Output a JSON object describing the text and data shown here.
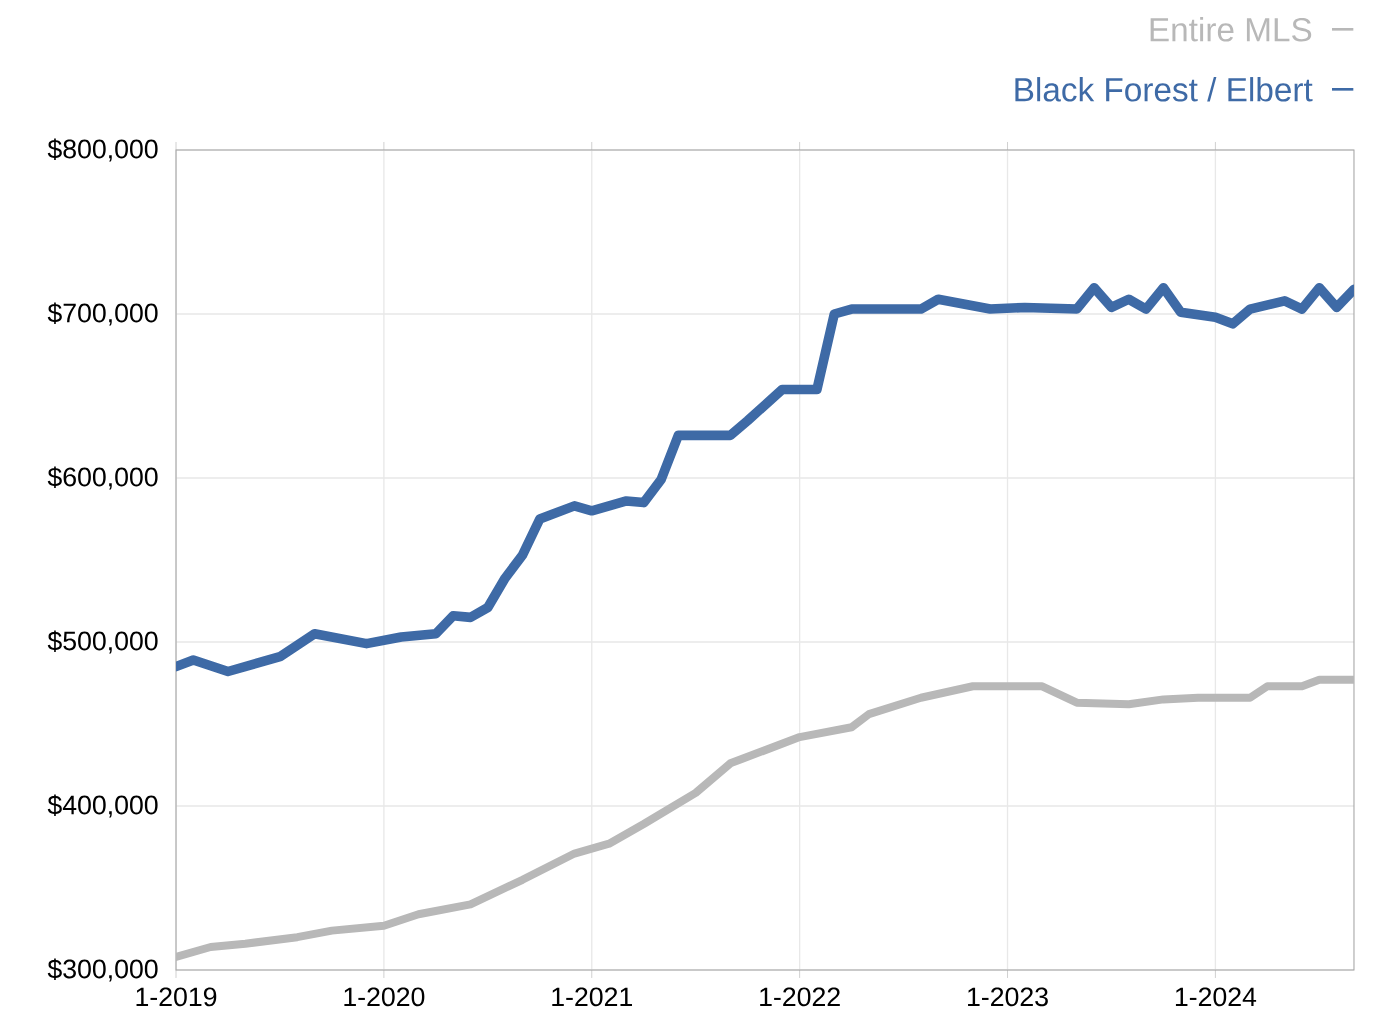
{
  "chart_data": {
    "type": "line",
    "xlim": [
      "2019-01",
      "2024-09"
    ],
    "xticks": [
      {
        "value": "2019-01",
        "label": "1-2019"
      },
      {
        "value": "2020-01",
        "label": "1-2020"
      },
      {
        "value": "2021-01",
        "label": "1-2021"
      },
      {
        "value": "2022-01",
        "label": "1-2022"
      },
      {
        "value": "2023-01",
        "label": "1-2023"
      },
      {
        "value": "2024-01",
        "label": "1-2024"
      }
    ],
    "ylim": [
      300000,
      800000
    ],
    "yticks": [
      {
        "value": 300000,
        "label": "$300,000"
      },
      {
        "value": 400000,
        "label": "$400,000"
      },
      {
        "value": 500000,
        "label": "$500,000"
      },
      {
        "value": 600000,
        "label": "$600,000"
      },
      {
        "value": 700000,
        "label": "$700,000"
      },
      {
        "value": 800000,
        "label": "$800,000"
      }
    ],
    "grid": true,
    "legend": "top right",
    "marker": "none",
    "line_style": "solid",
    "series": [
      {
        "name": "Entire MLS",
        "color": "#b8b8b8",
        "x": [
          "2019-01",
          "2019-03",
          "2019-05",
          "2019-08",
          "2019-10",
          "2020-01",
          "2020-03",
          "2020-06",
          "2020-09",
          "2020-12",
          "2021-02",
          "2021-04",
          "2021-07",
          "2021-09",
          "2022-01",
          "2022-04",
          "2022-05",
          "2022-08",
          "2022-11",
          "2023-03",
          "2023-05",
          "2023-08",
          "2023-10",
          "2023-12",
          "2024-03",
          "2024-04",
          "2024-06",
          "2024-07",
          "2024-09"
        ],
        "values": [
          308000,
          314000,
          316000,
          320000,
          324000,
          327000,
          334000,
          340000,
          355000,
          371000,
          377000,
          389000,
          408000,
          426000,
          442000,
          448000,
          456000,
          466000,
          473000,
          473000,
          463000,
          462000,
          465000,
          466000,
          466000,
          473000,
          473000,
          477000,
          477000
        ]
      },
      {
        "name": "Black Forest / Elbert",
        "color": "#3e6aa6",
        "x": [
          "2019-01",
          "2019-02",
          "2019-04",
          "2019-07",
          "2019-09",
          "2019-12",
          "2020-02",
          "2020-04",
          "2020-05",
          "2020-06",
          "2020-07",
          "2020-08",
          "2020-09",
          "2020-10",
          "2020-12",
          "2021-01",
          "2021-03",
          "2021-04",
          "2021-05",
          "2021-06",
          "2021-09",
          "2021-10",
          "2021-12",
          "2022-02",
          "2022-03",
          "2022-04",
          "2022-08",
          "2022-09",
          "2022-12",
          "2023-02",
          "2023-05",
          "2023-06",
          "2023-07",
          "2023-08",
          "2023-09",
          "2023-10",
          "2023-11",
          "2024-01",
          "2024-02",
          "2024-03",
          "2024-05",
          "2024-06",
          "2024-07",
          "2024-08",
          "2024-09"
        ],
        "values": [
          485000,
          489000,
          482000,
          491000,
          505000,
          499000,
          503000,
          505000,
          516000,
          515000,
          521000,
          539000,
          553000,
          575000,
          583000,
          580000,
          586000,
          585000,
          599000,
          626000,
          626000,
          635000,
          654000,
          654000,
          700000,
          703000,
          703000,
          709000,
          703000,
          704000,
          703000,
          716000,
          704000,
          709000,
          703000,
          716000,
          701000,
          698000,
          694000,
          703000,
          708000,
          703000,
          716000,
          704000,
          715000
        ]
      }
    ]
  }
}
